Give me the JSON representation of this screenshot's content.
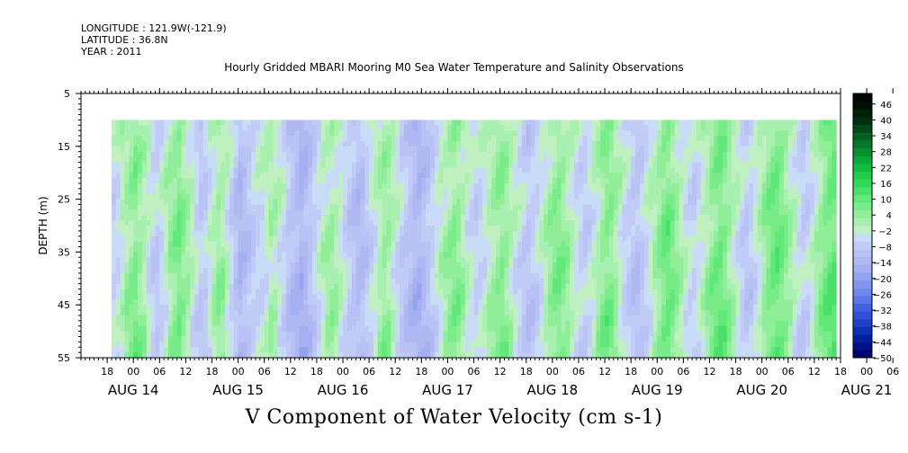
{
  "header": {
    "longitude": "LONGITUDE : 121.9W(-121.9)",
    "latitude": "LATITUDE : 36.8N",
    "year": "YEAR : 2011"
  },
  "chart_data": {
    "type": "heatmap",
    "title": "Hourly Gridded MBARI Mooring M0 Sea Water Temperature and Salinity Observations",
    "subtitle": "V Component of Water Velocity (cm s-1)",
    "ylabel": "DEPTH (m)",
    "ylim": [
      55,
      5
    ],
    "y_ticks": [
      5,
      15,
      25,
      35,
      45,
      55
    ],
    "x_start": "AUG 14 12:00",
    "x_end": "AUG 21 18:00",
    "x_hour_ticks": [
      "18",
      "00",
      "06",
      "12",
      "18",
      "00",
      "06",
      "12",
      "18",
      "00",
      "06",
      "12",
      "18",
      "00",
      "06",
      "12",
      "18",
      "00",
      "06",
      "12",
      "18",
      "00",
      "06",
      "12",
      "18",
      "00",
      "06",
      "12",
      "18",
      "00",
      "06",
      "12"
    ],
    "x_date_labels": [
      "AUG 14",
      "AUG 15",
      "AUG 16",
      "AUG 17",
      "AUG 18",
      "AUG 19",
      "AUG 20",
      "AUG 21"
    ],
    "data_depth_range": [
      10,
      55
    ],
    "colorbar_levels": [
      -50,
      -44,
      -38,
      -32,
      -26,
      -20,
      -14,
      -8,
      -2,
      4,
      10,
      16,
      22,
      28,
      34,
      40,
      46
    ],
    "colorbar": {
      "min": -50,
      "max": 50,
      "step": 3,
      "colors": [
        "#000070",
        "#00108a",
        "#0020a0",
        "#1030b4",
        "#2040c8",
        "#3050d8",
        "#4060e0",
        "#5a78e8",
        "#7088ec",
        "#8496ef",
        "#94a2f0",
        "#a4b0f2",
        "#b0b8f2",
        "#b8c2f4",
        "#c0ccf6",
        "#c8dcf8",
        "#c0f0c0",
        "#a8f0b0",
        "#90ee98",
        "#78ec88",
        "#60e878",
        "#48e068",
        "#30d858",
        "#20cc48",
        "#10bc40",
        "#08a838",
        "#049030",
        "#027828",
        "#026020",
        "#014818",
        "#013010",
        "#002008",
        "#001004",
        "#000800"
      ]
    },
    "columns_hourly_mean_v": [
      -4,
      -3,
      0,
      3,
      5,
      7,
      4,
      2,
      -2,
      -5,
      -6,
      -3,
      0,
      4,
      6,
      8,
      5,
      2,
      -1,
      -4,
      -7,
      -6,
      -2,
      1,
      4,
      3,
      -1,
      -5,
      -9,
      -12,
      -10,
      -8,
      -6,
      -4,
      -3,
      -1,
      2,
      1,
      -2,
      -4,
      -8,
      -10,
      -12,
      -14,
      -12,
      -9,
      -6,
      -3,
      0,
      2,
      3,
      1,
      -1,
      -4,
      -7,
      -9,
      -11,
      -10,
      -7,
      -4,
      -1,
      2,
      4,
      3,
      0,
      -3,
      -6,
      -8,
      -10,
      -12,
      -13,
      -11,
      -9,
      -6,
      -3,
      0,
      2,
      4,
      6,
      5,
      2,
      -1,
      -3,
      -5,
      -4,
      -2,
      1,
      3,
      5,
      6,
      4,
      1,
      -2,
      -4,
      -6,
      -8,
      -7,
      -5,
      -2,
      1,
      4,
      6,
      7,
      5,
      3,
      0,
      -3,
      -5,
      -6,
      -4,
      -1,
      2,
      5,
      7,
      6,
      3,
      -1,
      -4,
      -6,
      -8,
      -9,
      -7,
      -4,
      -1,
      2,
      5,
      8,
      9,
      7,
      4,
      1,
      -2,
      -4,
      -5,
      -3,
      0,
      3,
      6,
      8,
      9,
      7,
      4,
      1,
      -2,
      -5,
      -7,
      -6,
      -3,
      0,
      4,
      7,
      9,
      10,
      8,
      5,
      2,
      -1,
      -4,
      -6,
      -5,
      -2,
      2,
      5,
      8,
      10,
      11,
      9,
      6,
      3,
      0,
      -3,
      -5,
      -4,
      -1,
      2,
      5,
      6
    ]
  }
}
